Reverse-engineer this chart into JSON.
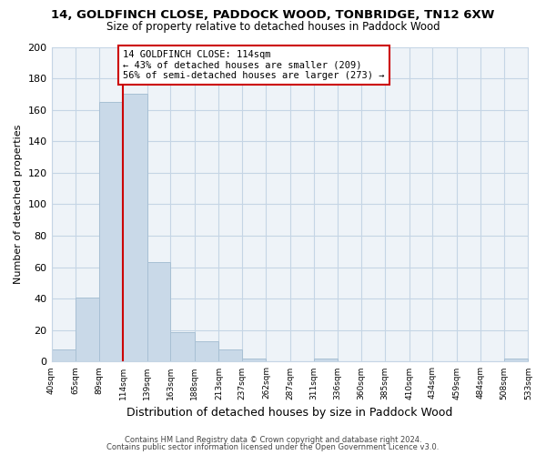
{
  "title": "14, GOLDFINCH CLOSE, PADDOCK WOOD, TONBRIDGE, TN12 6XW",
  "subtitle": "Size of property relative to detached houses in Paddock Wood",
  "xlabel": "Distribution of detached houses by size in Paddock Wood",
  "ylabel": "Number of detached properties",
  "bar_edges": [
    40,
    65,
    89,
    114,
    139,
    163,
    188,
    213,
    237,
    262,
    287,
    311,
    336,
    360,
    385,
    410,
    434,
    459,
    484,
    508,
    533
  ],
  "bar_heights": [
    8,
    41,
    165,
    170,
    63,
    19,
    13,
    8,
    2,
    0,
    0,
    2,
    0,
    0,
    0,
    0,
    0,
    0,
    0,
    2
  ],
  "tick_labels": [
    "40sqm",
    "65sqm",
    "89sqm",
    "114sqm",
    "139sqm",
    "163sqm",
    "188sqm",
    "213sqm",
    "237sqm",
    "262sqm",
    "287sqm",
    "311sqm",
    "336sqm",
    "360sqm",
    "385sqm",
    "410sqm",
    "434sqm",
    "459sqm",
    "484sqm",
    "508sqm",
    "533sqm"
  ],
  "bar_color": "#c9d9e8",
  "bar_edge_color": "#a8c0d4",
  "vline_x": 114,
  "vline_color": "#cc0000",
  "annotation_box_color": "#cc0000",
  "annotation_text_line1": "14 GOLDFINCH CLOSE: 114sqm",
  "annotation_text_line2": "← 43% of detached houses are smaller (209)",
  "annotation_text_line3": "56% of semi-detached houses are larger (273) →",
  "ylim": [
    0,
    200
  ],
  "yticks": [
    0,
    20,
    40,
    60,
    80,
    100,
    120,
    140,
    160,
    180,
    200
  ],
  "footer_line1": "Contains HM Land Registry data © Crown copyright and database right 2024.",
  "footer_line2": "Contains public sector information licensed under the Open Government Licence v3.0.",
  "bg_color": "#ffffff",
  "plot_bg_color": "#eef3f8",
  "grid_color": "#c5d5e5"
}
